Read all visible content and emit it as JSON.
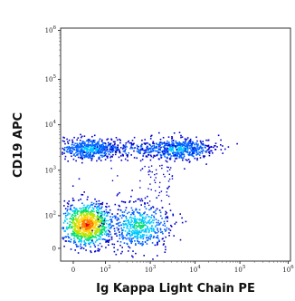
{
  "chart_data": {
    "type": "scatter",
    "style": "flow-cytometry-density-dot-plot",
    "title": "",
    "xlabel": "Ig Kappa Light Chain PE",
    "ylabel": "CD19 APC",
    "x_scale": "biexponential",
    "y_scale": "biexponential",
    "x_ticks": [
      {
        "value": 0,
        "base": "0",
        "exp": ""
      },
      {
        "value": 100,
        "base": "10",
        "exp": "2"
      },
      {
        "value": 1000,
        "base": "10",
        "exp": "3"
      },
      {
        "value": 10000,
        "base": "10",
        "exp": "4"
      },
      {
        "value": 100000,
        "base": "10",
        "exp": "5"
      },
      {
        "value": 1000000,
        "base": "10",
        "exp": "6"
      }
    ],
    "y_ticks": [
      {
        "value": 0,
        "base": "0",
        "exp": ""
      },
      {
        "value": 100,
        "base": "10",
        "exp": "2"
      },
      {
        "value": 1000,
        "base": "10",
        "exp": "3"
      },
      {
        "value": 10000,
        "base": "10",
        "exp": "4"
      },
      {
        "value": 100000,
        "base": "10",
        "exp": "5"
      },
      {
        "value": 1000000,
        "base": "10",
        "exp": "6"
      }
    ],
    "xlim": [
      -30,
      1000000
    ],
    "ylim": [
      -30,
      1000000
    ],
    "grid": false,
    "legend": "none",
    "colormap": [
      "#0000c8",
      "#0060ff",
      "#00c8ff",
      "#00e070",
      "#b4e600",
      "#ffd200",
      "#ff7800",
      "#e60000"
    ],
    "populations": [
      {
        "x_center": 40,
        "y_center": 75,
        "x_spread_decades": 0.3,
        "y_spread_decades": 0.25,
        "density": "high",
        "peak_color": "#e60000"
      },
      {
        "x_center": 550,
        "y_center": 70,
        "x_spread_decades": 0.35,
        "y_spread_decades": 0.25,
        "density": "medium",
        "peak_color": "#00e070"
      },
      {
        "x_center": 50,
        "y_center": 3000,
        "x_spread_decades": 0.35,
        "y_spread_decades": 0.12,
        "density": "medium",
        "peak_color": "#00c8ff"
      },
      {
        "x_center": 4000,
        "y_center": 3000,
        "x_spread_decades": 0.4,
        "y_spread_decades": 0.12,
        "density": "medium",
        "peak_color": "#00c8ff"
      },
      {
        "x_center": 500,
        "y_center": 3000,
        "x_spread_decades": 0.5,
        "y_spread_decades": 0.1,
        "density": "low",
        "peak_color": "#0060ff"
      }
    ]
  }
}
